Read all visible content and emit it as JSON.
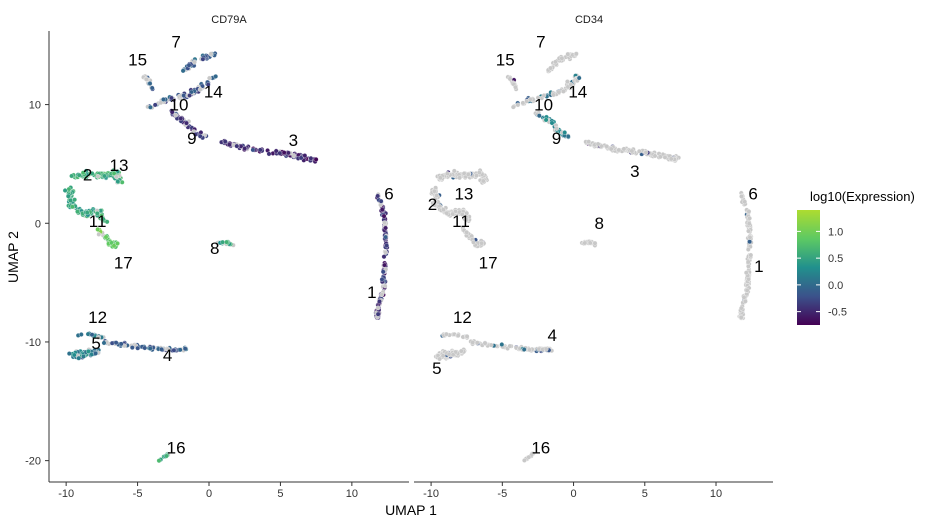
{
  "chart_data": {
    "type": "scatter",
    "xlabel": "UMAP 1",
    "ylabel": "UMAP 2",
    "xlim": [
      -11.2,
      14.0
    ],
    "ylim": [
      -21.8,
      16.2
    ],
    "xticks": [
      -10,
      -5,
      0,
      5,
      10
    ],
    "yticks": [
      -20,
      -10,
      0,
      10
    ],
    "grid": false,
    "panels": [
      {
        "title": "CD79A",
        "cluster_labels": [
          {
            "label": "7",
            "x": -2.3,
            "y": 14.8
          },
          {
            "label": "15",
            "x": -5.0,
            "y": 13.3
          },
          {
            "label": "14",
            "x": 0.3,
            "y": 10.6
          },
          {
            "label": "10",
            "x": -2.1,
            "y": 9.5
          },
          {
            "label": "9",
            "x": -1.2,
            "y": 6.7
          },
          {
            "label": "3",
            "x": 5.9,
            "y": 6.5
          },
          {
            "label": "13",
            "x": -6.3,
            "y": 4.4
          },
          {
            "label": "2",
            "x": -8.5,
            "y": 3.6
          },
          {
            "label": "6",
            "x": 12.6,
            "y": 2.0
          },
          {
            "label": "11",
            "x": -7.8,
            "y": -0.3
          },
          {
            "label": "8",
            "x": 0.4,
            "y": -2.6
          },
          {
            "label": "17",
            "x": -6.0,
            "y": -3.8
          },
          {
            "label": "1",
            "x": 11.4,
            "y": -6.3
          },
          {
            "label": "12",
            "x": -7.8,
            "y": -8.4
          },
          {
            "label": "5",
            "x": -7.9,
            "y": -10.6
          },
          {
            "label": "4",
            "x": -2.9,
            "y": -11.6
          },
          {
            "label": "16",
            "x": -2.3,
            "y": -19.4
          }
        ]
      },
      {
        "title": "CD34",
        "cluster_labels": [
          {
            "label": "7",
            "x": -2.3,
            "y": 14.8
          },
          {
            "label": "15",
            "x": -4.8,
            "y": 13.3
          },
          {
            "label": "14",
            "x": 0.3,
            "y": 10.6
          },
          {
            "label": "10",
            "x": -2.1,
            "y": 9.5
          },
          {
            "label": "9",
            "x": -1.2,
            "y": 6.7
          },
          {
            "label": "3",
            "x": 4.3,
            "y": 3.9
          },
          {
            "label": "6",
            "x": 12.6,
            "y": 2.0
          },
          {
            "label": "13",
            "x": -7.7,
            "y": 2.0
          },
          {
            "label": "2",
            "x": -9.9,
            "y": 1.1
          },
          {
            "label": "8",
            "x": 1.8,
            "y": -0.5
          },
          {
            "label": "11",
            "x": -7.9,
            "y": -0.3
          },
          {
            "label": "17",
            "x": -6.0,
            "y": -3.8
          },
          {
            "label": "1",
            "x": 13.0,
            "y": -4.1
          },
          {
            "label": "12",
            "x": -7.8,
            "y": -8.4
          },
          {
            "label": "4",
            "x": -1.5,
            "y": -9.9
          },
          {
            "label": "5",
            "x": -9.6,
            "y": -12.7
          },
          {
            "label": "16",
            "x": -2.3,
            "y": -19.4
          }
        ]
      }
    ],
    "legend": {
      "title": "log10(Expression)",
      "placement": "right",
      "range": [
        -0.75,
        1.4
      ],
      "ticks": [
        1.0,
        0.5,
        0.0,
        -0.5
      ],
      "tick_labels": [
        "1.0",
        "0.5",
        "0.0",
        "-0.5"
      ],
      "colormap": [
        "#440154",
        "#3b528b",
        "#21908d",
        "#5dc963",
        "#addc30"
      ]
    },
    "colors": {
      "not_expressed": "#c8c8c8",
      "outline": "#ffffff"
    }
  }
}
